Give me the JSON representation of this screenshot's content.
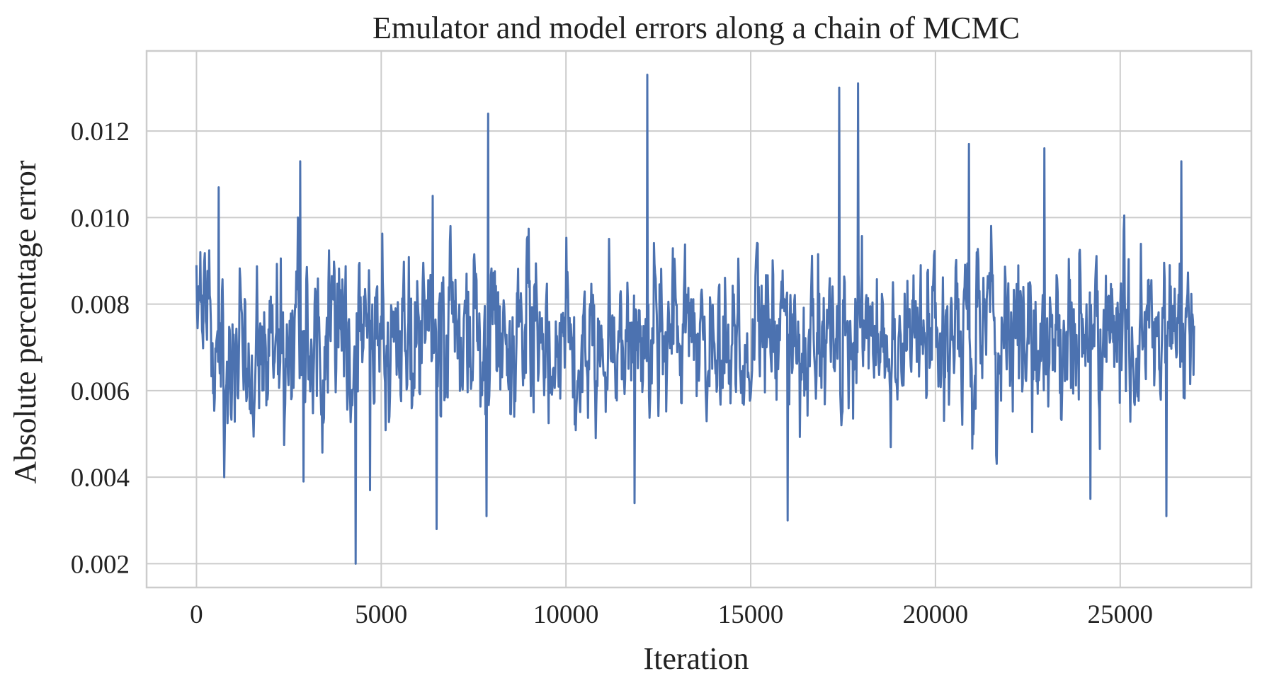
{
  "chart_data": {
    "type": "line",
    "title": "Emulator and model errors along a chain of MCMC",
    "xlabel": "Iteration",
    "ylabel": "Absolute percentage error",
    "xlim": [
      -1350,
      28550
    ],
    "ylim": [
      0.00145,
      0.01385
    ],
    "xticks": [
      0,
      5000,
      10000,
      15000,
      20000,
      25000
    ],
    "xtick_labels": [
      "0",
      "5000",
      "10000",
      "15000",
      "20000",
      "25000"
    ],
    "yticks": [
      0.002,
      0.004,
      0.006,
      0.008,
      0.01,
      0.012
    ],
    "ytick_labels": [
      "0.002",
      "0.004",
      "0.006",
      "0.008",
      "0.010",
      "0.012"
    ],
    "grid": true,
    "series": [
      {
        "color": "#4c72b0",
        "x_start": 0,
        "x_end": 27000,
        "samples": 1800,
        "mean": 0.0072,
        "extremes": [
          {
            "x": 0,
            "y": 0.0089
          },
          {
            "x": 600,
            "y": 0.0107
          },
          {
            "x": 750,
            "y": 0.004
          },
          {
            "x": 2800,
            "y": 0.0113
          },
          {
            "x": 2900,
            "y": 0.0039
          },
          {
            "x": 4300,
            "y": 0.002
          },
          {
            "x": 4700,
            "y": 0.0037
          },
          {
            "x": 6400,
            "y": 0.0105
          },
          {
            "x": 6500,
            "y": 0.0028
          },
          {
            "x": 7850,
            "y": 0.0031
          },
          {
            "x": 7900,
            "y": 0.0124
          },
          {
            "x": 11850,
            "y": 0.0034
          },
          {
            "x": 12200,
            "y": 0.0133
          },
          {
            "x": 16000,
            "y": 0.003
          },
          {
            "x": 17400,
            "y": 0.013
          },
          {
            "x": 17900,
            "y": 0.0131
          },
          {
            "x": 20900,
            "y": 0.0117
          },
          {
            "x": 22950,
            "y": 0.0116
          },
          {
            "x": 24200,
            "y": 0.0035
          },
          {
            "x": 26250,
            "y": 0.0031
          },
          {
            "x": 26650,
            "y": 0.0113
          },
          {
            "x": 27000,
            "y": 0.0075
          }
        ]
      }
    ]
  }
}
